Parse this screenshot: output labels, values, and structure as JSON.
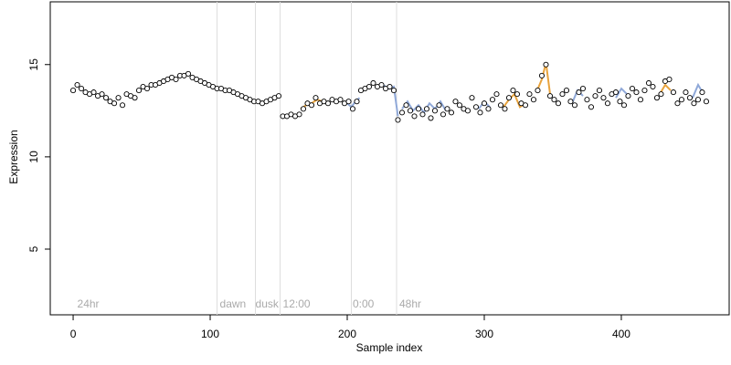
{
  "chart_data": {
    "type": "scatter",
    "xlabel": "Sample index",
    "ylabel": "Expression",
    "xlim": [
      -16.7,
      478.7
    ],
    "ylim": [
      1.44,
      18.4
    ],
    "xticks": [
      0,
      100,
      200,
      300,
      400
    ],
    "yticks": [
      5,
      10,
      15
    ],
    "point_color": "#ffffff",
    "x": [
      0,
      3,
      6,
      9,
      12,
      15,
      18,
      21,
      24,
      27,
      30,
      33,
      36,
      39,
      42,
      45,
      48,
      51,
      54,
      57,
      60,
      63,
      66,
      69,
      72,
      75,
      78,
      81,
      84,
      87,
      90,
      93,
      96,
      99,
      102,
      105,
      108,
      111,
      114,
      117,
      120,
      123,
      126,
      129,
      132,
      135,
      138,
      141,
      144,
      147,
      150,
      153,
      156,
      159,
      162,
      165,
      168,
      171,
      174,
      177,
      180,
      183,
      186,
      189,
      192,
      195,
      198,
      201,
      204,
      207,
      210,
      213,
      216,
      219,
      222,
      225,
      228,
      231,
      234,
      237,
      240,
      243,
      246,
      249,
      252,
      255,
      258,
      261,
      264,
      267,
      270,
      273,
      276,
      279,
      282,
      285,
      288,
      291,
      294,
      297,
      300,
      303,
      306,
      309,
      312,
      315,
      318,
      321,
      324,
      327,
      330,
      333,
      336,
      339,
      342,
      345,
      348,
      351,
      354,
      357,
      360,
      363,
      366,
      369,
      372,
      375,
      378,
      381,
      384,
      387,
      390,
      393,
      396,
      399,
      402,
      405,
      408,
      411,
      414,
      417,
      420,
      423,
      426,
      429,
      432,
      435,
      438,
      441,
      444,
      447,
      450,
      453,
      456,
      459,
      462
    ],
    "values": [
      13.6,
      13.9,
      13.7,
      13.5,
      13.4,
      13.5,
      13.3,
      13.4,
      13.2,
      13.0,
      12.9,
      13.2,
      12.8,
      13.4,
      13.3,
      13.2,
      13.6,
      13.8,
      13.7,
      13.9,
      13.9,
      14.0,
      14.1,
      14.2,
      14.3,
      14.2,
      14.4,
      14.4,
      14.5,
      14.3,
      14.2,
      14.1,
      14.0,
      13.9,
      13.8,
      13.7,
      13.7,
      13.6,
      13.6,
      13.5,
      13.4,
      13.3,
      13.2,
      13.1,
      13.0,
      13.0,
      12.9,
      13.0,
      13.1,
      13.2,
      13.3,
      12.2,
      12.2,
      12.3,
      12.2,
      12.3,
      12.6,
      12.9,
      12.8,
      13.2,
      12.9,
      13.0,
      12.9,
      13.1,
      13.0,
      13.1,
      12.9,
      13.0,
      12.6,
      13.0,
      13.6,
      13.7,
      13.8,
      14.0,
      13.8,
      13.9,
      13.7,
      13.8,
      13.6,
      12.0,
      12.4,
      12.8,
      12.5,
      12.2,
      12.6,
      12.3,
      12.6,
      12.1,
      12.5,
      12.8,
      12.3,
      12.6,
      12.4,
      13.0,
      12.8,
      12.6,
      12.5,
      13.2,
      12.7,
      12.4,
      12.9,
      12.6,
      13.1,
      13.4,
      12.8,
      12.6,
      13.2,
      13.6,
      13.4,
      12.9,
      12.8,
      13.4,
      13.1,
      13.6,
      14.4,
      15.0,
      13.3,
      13.1,
      12.9,
      13.4,
      13.6,
      13.0,
      12.8,
      13.5,
      13.7,
      13.1,
      12.7,
      13.3,
      13.6,
      13.2,
      12.9,
      13.4,
      13.5,
      13.0,
      12.8,
      13.3,
      13.7,
      13.5,
      13.1,
      13.6,
      14.0,
      13.8,
      13.2,
      13.4,
      14.1,
      14.2,
      13.5,
      12.9,
      13.1,
      13.5,
      13.2,
      12.9,
      13.1,
      13.5,
      13.0
    ],
    "series": [
      {
        "color": "#e8a33d",
        "x": [
          166,
          170,
          174,
          178,
          182,
          null,
          314,
          318,
          322,
          326,
          330,
          null,
          338,
          342,
          345,
          348,
          null,
          428,
          432,
          436
        ],
        "values": [
          12.6,
          12.8,
          12.9,
          13.1,
          13.0,
          null,
          12.7,
          13.1,
          13.4,
          12.7,
          12.9,
          null,
          13.5,
          14.2,
          15.1,
          13.4,
          null,
          13.4,
          13.9,
          13.6
        ]
      },
      {
        "color": "#8fa8d8",
        "x": [
          200,
          203,
          206,
          209,
          null,
          226,
          230,
          234,
          237,
          null,
          240,
          244,
          248,
          252,
          256,
          260,
          264,
          268,
          272,
          null,
          296,
          300,
          304,
          null,
          364,
          368,
          372,
          null,
          396,
          400,
          404,
          null,
          452,
          456,
          460
        ],
        "values": [
          12.9,
          12.7,
          13.0,
          13.2,
          null,
          13.9,
          13.7,
          13.8,
          12.2,
          null,
          12.6,
          13.0,
          12.5,
          12.8,
          12.4,
          12.9,
          12.6,
          13.0,
          12.5,
          null,
          12.6,
          13.0,
          12.7,
          null,
          12.9,
          13.6,
          13.3,
          null,
          13.2,
          13.7,
          13.4,
          null,
          13.2,
          13.9,
          13.4
        ]
      }
    ],
    "vlines": [
      105,
      133,
      151,
      203,
      236
    ],
    "annotations": [
      {
        "text": "24hr",
        "x": 3,
        "y": 2
      },
      {
        "text": "dawn",
        "x": 107,
        "y": 2
      },
      {
        "text": "dusk",
        "x": 133,
        "y": 2
      },
      {
        "text": "12:00",
        "x": 153,
        "y": 2
      },
      {
        "text": "0:00",
        "x": 204,
        "y": 2
      },
      {
        "text": "48hr",
        "x": 238,
        "y": 2
      }
    ]
  }
}
